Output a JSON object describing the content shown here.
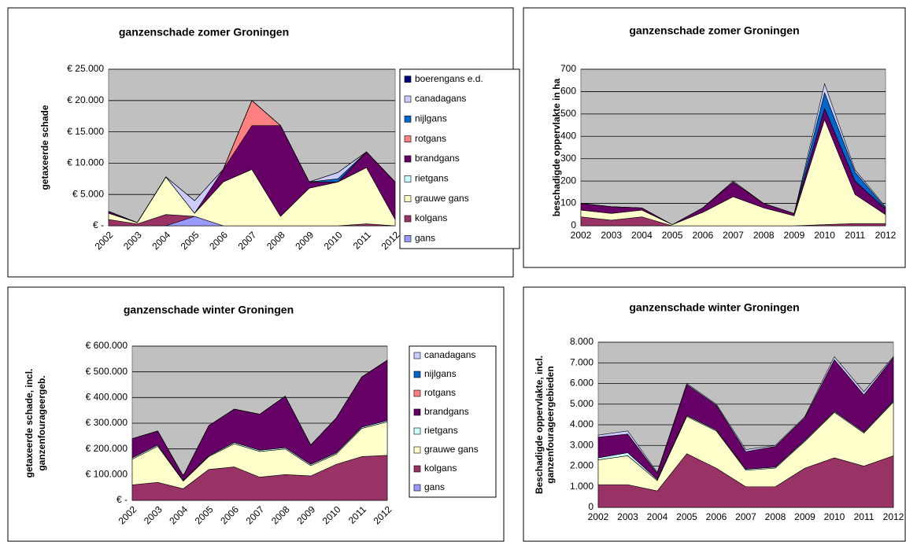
{
  "chart_data": [
    {
      "type": "stacked-area",
      "title": "ganzenschade zomer Groningen",
      "ylabel": [
        "getaxeerde schade"
      ],
      "categories": [
        "2002",
        "2003",
        "2004",
        "2005",
        "2006",
        "2007",
        "2008",
        "2009",
        "2010",
        "2011",
        "2012"
      ],
      "ylim": [
        0,
        25000
      ],
      "yticks": [
        {
          "value": 0,
          "label": "€ -"
        },
        {
          "value": 5000,
          "label": "€ 5.000"
        },
        {
          "value": 10000,
          "label": "€ 10.000"
        },
        {
          "value": 15000,
          "label": "€ 15.000"
        },
        {
          "value": 20000,
          "label": "€ 20.000"
        },
        {
          "value": 25000,
          "label": "€ 25.000"
        }
      ],
      "grid": true,
      "plot_background": "#c0c0c0",
      "legend": "right",
      "rotated_x_labels": true,
      "series": [
        {
          "name": "gans",
          "color": "#9999ff",
          "values": [
            0,
            0,
            0,
            1500,
            0,
            0,
            0,
            0,
            0,
            0,
            0
          ]
        },
        {
          "name": "kolgans",
          "color": "#993366",
          "values": [
            1000,
            300,
            1800,
            0,
            0,
            0,
            0,
            0,
            0,
            300,
            0
          ]
        },
        {
          "name": "grauwe gans",
          "color": "#ffffcc",
          "values": [
            1000,
            200,
            6000,
            500,
            7000,
            9000,
            1500,
            6000,
            7000,
            9000,
            1000
          ]
        },
        {
          "name": "rietgans",
          "color": "#ccffff",
          "values": [
            0,
            0,
            0,
            0,
            0,
            0,
            0,
            0,
            0,
            0,
            0
          ]
        },
        {
          "name": "brandgans",
          "color": "#660066",
          "values": [
            300,
            0,
            0,
            0,
            2000,
            7000,
            14500,
            1000,
            0,
            2500,
            6000
          ]
        },
        {
          "name": "rotgans",
          "color": "#ff8080",
          "values": [
            0,
            0,
            0,
            0,
            0,
            4000,
            0,
            0,
            0,
            0,
            0
          ]
        },
        {
          "name": "nijlgans",
          "color": "#0066cc",
          "values": [
            0,
            0,
            0,
            0,
            0,
            0,
            0,
            0,
            500,
            0,
            0
          ]
        },
        {
          "name": "canadagans",
          "color": "#ccccff",
          "values": [
            0,
            0,
            0,
            2000,
            0,
            0,
            0,
            0,
            1000,
            0,
            0
          ]
        },
        {
          "name": "boerengans e.d.",
          "color": "#000080",
          "values": [
            0,
            0,
            0,
            0,
            0,
            0,
            0,
            0,
            0,
            0,
            0
          ]
        }
      ]
    },
    {
      "type": "stacked-area",
      "title": "ganzenschade zomer Groningen",
      "ylabel": [
        "beschadigde oppervlakte in ha"
      ],
      "categories": [
        "2002",
        "2003",
        "2004",
        "2005",
        "2006",
        "2007",
        "2008",
        "2009",
        "2010",
        "2011",
        "2012"
      ],
      "ylim": [
        0,
        700
      ],
      "yticks": [
        0,
        100,
        200,
        300,
        400,
        500,
        600,
        700
      ],
      "grid": true,
      "plot_background": "#c0c0c0",
      "rotated_x_labels": false,
      "series": [
        {
          "color": "#993366",
          "values": [
            40,
            25,
            40,
            0,
            0,
            0,
            0,
            0,
            5,
            10,
            10
          ]
        },
        {
          "color": "#ffffcc",
          "values": [
            30,
            30,
            30,
            5,
            60,
            130,
            80,
            45,
            470,
            130,
            40
          ]
        },
        {
          "color": "#660066",
          "values": [
            30,
            30,
            10,
            0,
            20,
            65,
            20,
            10,
            50,
            60,
            25
          ]
        },
        {
          "color": "#0066cc",
          "values": [
            0,
            0,
            0,
            0,
            0,
            0,
            0,
            0,
            70,
            40,
            5
          ]
        },
        {
          "color": "#ccccff",
          "values": [
            0,
            0,
            0,
            0,
            0,
            5,
            0,
            0,
            40,
            10,
            5
          ]
        }
      ]
    },
    {
      "type": "stacked-area",
      "title": "ganzenschade winter Groningen",
      "ylabel": [
        "getaxeerde schade, incl.",
        "ganzenfourageergeb."
      ],
      "categories": [
        "2002",
        "2003",
        "2004",
        "2005",
        "2006",
        "2007",
        "2008",
        "2009",
        "2010",
        "2011",
        "2012"
      ],
      "ylim": [
        0,
        600000
      ],
      "yticks": [
        {
          "value": 0,
          "label": "€ -"
        },
        {
          "value": 100000,
          "label": "€ 100.000"
        },
        {
          "value": 200000,
          "label": "€ 200.000"
        },
        {
          "value": 300000,
          "label": "€ 300.000"
        },
        {
          "value": 400000,
          "label": "€ 400.000"
        },
        {
          "value": 500000,
          "label": "€ 500.000"
        },
        {
          "value": 600000,
          "label": "€ 600.000"
        }
      ],
      "grid": true,
      "plot_background": "#c0c0c0",
      "legend": "right",
      "rotated_x_labels": true,
      "series": [
        {
          "name": "gans",
          "color": "#9999ff",
          "values": [
            0,
            0,
            0,
            0,
            0,
            0,
            0,
            0,
            0,
            0,
            0
          ]
        },
        {
          "name": "kolgans",
          "color": "#993366",
          "values": [
            60000,
            70000,
            45000,
            120000,
            130000,
            90000,
            100000,
            95000,
            140000,
            170000,
            175000
          ]
        },
        {
          "name": "grauwe gans",
          "color": "#ffffcc",
          "values": [
            100000,
            140000,
            30000,
            50000,
            90000,
            100000,
            100000,
            40000,
            40000,
            110000,
            130000
          ]
        },
        {
          "name": "rietgans",
          "color": "#ccffff",
          "values": [
            5000,
            5000,
            2000,
            3000,
            5000,
            5000,
            5000,
            5000,
            5000,
            5000,
            5000
          ]
        },
        {
          "name": "brandgans",
          "color": "#660066",
          "values": [
            75000,
            55000,
            18000,
            117000,
            130000,
            140000,
            200000,
            75000,
            135000,
            195000,
            235000
          ]
        },
        {
          "name": "rotgans",
          "color": "#ff8080",
          "values": [
            0,
            0,
            0,
            0,
            0,
            0,
            0,
            0,
            0,
            0,
            0
          ]
        },
        {
          "name": "nijlgans",
          "color": "#0066cc",
          "values": [
            0,
            0,
            0,
            0,
            0,
            0,
            0,
            0,
            0,
            0,
            0
          ]
        },
        {
          "name": "canadagans",
          "color": "#ccccff",
          "values": [
            0,
            0,
            0,
            0,
            0,
            0,
            0,
            0,
            0,
            0,
            0
          ]
        }
      ]
    },
    {
      "type": "stacked-area",
      "title": "ganzenschade winter Groningen",
      "ylabel": [
        "Beschadigde oppervlakte, incl.",
        "ganzenfourageergebieden"
      ],
      "categories": [
        "2002",
        "2003",
        "2004",
        "2005",
        "2006",
        "2007",
        "2008",
        "2009",
        "2010",
        "2011",
        "2012"
      ],
      "ylim": [
        0,
        8000
      ],
      "yticks": [
        0,
        {
          "value": 1000,
          "label": "1.000"
        },
        {
          "value": 2000,
          "label": "2.000"
        },
        {
          "value": 3000,
          "label": "3.000"
        },
        {
          "value": 4000,
          "label": "4.000"
        },
        {
          "value": 5000,
          "label": "5.000"
        },
        {
          "value": 6000,
          "label": "6.000"
        },
        {
          "value": 7000,
          "label": "7.000"
        },
        {
          "value": 8000,
          "label": "8.000"
        }
      ],
      "grid": true,
      "plot_background": "#c0c0c0",
      "rotated_x_labels": false,
      "series": [
        {
          "color": "#993366",
          "values": [
            1100,
            1100,
            800,
            2600,
            1900,
            1000,
            1000,
            1900,
            2400,
            2000,
            2500
          ]
        },
        {
          "color": "#ffffcc",
          "values": [
            1200,
            1400,
            500,
            1800,
            1800,
            800,
            900,
            1300,
            2200,
            1600,
            2600
          ]
        },
        {
          "color": "#ccffff",
          "values": [
            100,
            150,
            50,
            50,
            50,
            50,
            50,
            50,
            50,
            50,
            50
          ]
        },
        {
          "color": "#660066",
          "values": [
            1000,
            900,
            300,
            1500,
            1200,
            850,
            1000,
            1100,
            2500,
            1800,
            2100
          ]
        },
        {
          "color": "#ccccff",
          "values": [
            100,
            150,
            50,
            50,
            50,
            100,
            50,
            50,
            150,
            150,
            50
          ]
        }
      ]
    }
  ]
}
